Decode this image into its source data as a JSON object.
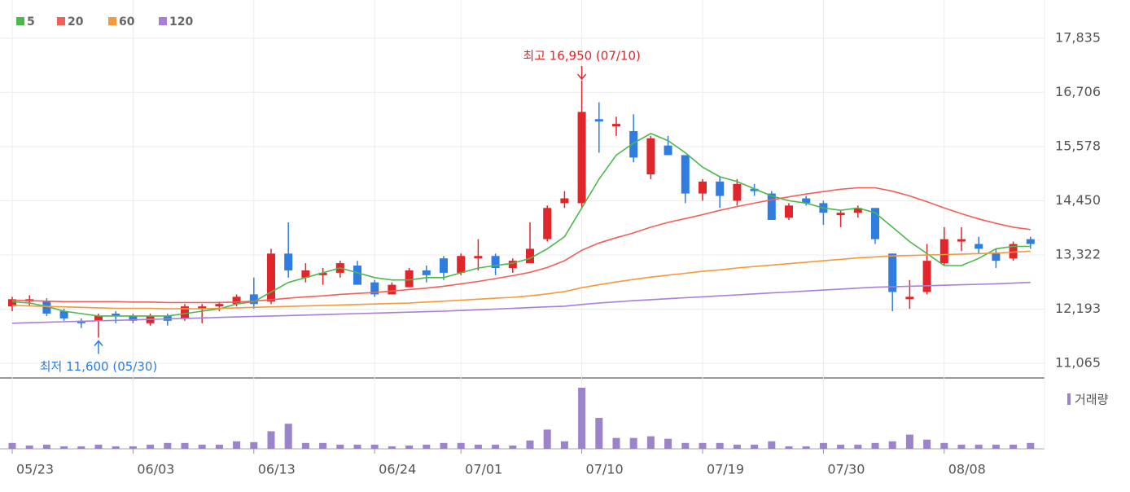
{
  "chart_data": {
    "type": "candlestick",
    "categories": [
      "05/23",
      null,
      null,
      null,
      null,
      null,
      null,
      "06/03",
      null,
      null,
      null,
      null,
      null,
      null,
      "06/13",
      null,
      null,
      null,
      null,
      null,
      null,
      "06/24",
      null,
      null,
      null,
      null,
      "07/01",
      null,
      null,
      null,
      null,
      null,
      null,
      "07/10",
      null,
      null,
      null,
      null,
      null,
      null,
      "07/19",
      null,
      null,
      null,
      null,
      null,
      null,
      "07/30",
      null,
      null,
      null,
      null,
      null,
      null,
      "08/08",
      null,
      null,
      null,
      null,
      null
    ],
    "open": [
      12250,
      12350,
      12350,
      12150,
      11950,
      11950,
      12100,
      12050,
      11900,
      12050,
      12000,
      12200,
      12250,
      12300,
      12500,
      12350,
      13350,
      12850,
      12900,
      12950,
      13100,
      12750,
      12500,
      12650,
      13000,
      13250,
      12950,
      13250,
      13300,
      13050,
      13150,
      13650,
      14400,
      14400,
      16150,
      16000,
      15900,
      15000,
      15600,
      15400,
      14600,
      14850,
      14450,
      14700,
      14600,
      14100,
      14500,
      14400,
      14150,
      14200,
      14300,
      13350,
      12400,
      12550,
      13150,
      13600,
      13550,
      13350,
      13250,
      13650
    ],
    "high": [
      12450,
      12480,
      12420,
      12200,
      12000,
      12100,
      12150,
      12100,
      12100,
      12100,
      12300,
      12300,
      12350,
      12500,
      12850,
      13450,
      14000,
      13150,
      13050,
      13200,
      13200,
      12800,
      12750,
      13050,
      13100,
      13300,
      13350,
      13650,
      13350,
      13250,
      14000,
      14350,
      14650,
      16950,
      16500,
      16200,
      16250,
      15800,
      15800,
      15400,
      14900,
      14950,
      14900,
      14800,
      14650,
      14400,
      14550,
      14450,
      14250,
      14350,
      14300,
      13350,
      12800,
      13550,
      13900,
      13900,
      13700,
      13450,
      13600,
      13700
    ],
    "low": [
      12150,
      12250,
      12050,
      11950,
      11800,
      11600,
      11900,
      11900,
      11850,
      11850,
      11950,
      11900,
      12150,
      12250,
      12200,
      12300,
      12850,
      12750,
      12700,
      12850,
      12700,
      12450,
      12500,
      12650,
      12750,
      12800,
      12900,
      13000,
      12900,
      12950,
      13150,
      13600,
      14300,
      14300,
      15450,
      15800,
      15250,
      14900,
      15400,
      14400,
      14450,
      14300,
      14350,
      14550,
      14050,
      14050,
      14350,
      13950,
      13900,
      14100,
      13550,
      12150,
      12200,
      12500,
      13100,
      13400,
      13350,
      13050,
      13200,
      13450
    ],
    "close": [
      12400,
      12400,
      12100,
      12000,
      11900,
      12050,
      12050,
      11950,
      12050,
      11950,
      12250,
      12250,
      12300,
      12450,
      12300,
      13350,
      13000,
      13000,
      12950,
      13150,
      12700,
      12500,
      12700,
      13000,
      12900,
      12950,
      13300,
      13300,
      13050,
      13200,
      13450,
      14300,
      14500,
      16300,
      16100,
      16050,
      15350,
      15750,
      15400,
      14600,
      14850,
      14550,
      14800,
      14650,
      14050,
      14350,
      14400,
      14200,
      14200,
      14300,
      13650,
      12550,
      12450,
      13200,
      13650,
      13650,
      13450,
      13200,
      13550,
      13550
    ],
    "up_color": "#e0262a",
    "down_color": "#2f7de1",
    "series": [
      {
        "name": "5",
        "color": "#4cb84c",
        "values": [
          12350,
          12320,
          12250,
          12150,
          12100,
          12050,
          12050,
          12050,
          12050,
          12050,
          12100,
          12150,
          12200,
          12300,
          12350,
          12550,
          12750,
          12850,
          12950,
          13050,
          12950,
          12850,
          12800,
          12800,
          12850,
          12850,
          12950,
          13050,
          13100,
          13150,
          13250,
          13450,
          13700,
          14300,
          14900,
          15400,
          15650,
          15850,
          15700,
          15450,
          15150,
          14950,
          14850,
          14700,
          14550,
          14450,
          14400,
          14300,
          14250,
          14300,
          14200,
          13900,
          13600,
          13350,
          13100,
          13100,
          13250,
          13450,
          13500,
          13500
        ]
      },
      {
        "name": "20",
        "color": "#f0605a",
        "values": [
          12380,
          12370,
          12360,
          12350,
          12350,
          12350,
          12350,
          12340,
          12340,
          12330,
          12330,
          12330,
          12330,
          12340,
          12360,
          12390,
          12420,
          12450,
          12470,
          12500,
          12520,
          12540,
          12570,
          12600,
          12630,
          12670,
          12720,
          12770,
          12830,
          12890,
          12960,
          13060,
          13200,
          13420,
          13570,
          13680,
          13780,
          13900,
          14000,
          14080,
          14160,
          14250,
          14330,
          14400,
          14470,
          14530,
          14590,
          14640,
          14690,
          14720,
          14720,
          14650,
          14550,
          14430,
          14300,
          14180,
          14070,
          13980,
          13900,
          13850
        ]
      },
      {
        "name": "60",
        "color": "#f39a3c",
        "values": [
          12270,
          12260,
          12250,
          12240,
          12230,
          12220,
          12210,
          12210,
          12210,
          12200,
          12200,
          12200,
          12210,
          12220,
          12230,
          12240,
          12250,
          12260,
          12270,
          12280,
          12290,
          12300,
          12310,
          12320,
          12340,
          12360,
          12380,
          12400,
          12420,
          12440,
          12470,
          12510,
          12560,
          12640,
          12700,
          12760,
          12810,
          12860,
          12900,
          12940,
          12980,
          13010,
          13050,
          13080,
          13110,
          13140,
          13170,
          13200,
          13230,
          13260,
          13280,
          13300,
          13310,
          13320,
          13330,
          13340,
          13350,
          13360,
          13380,
          13400
        ]
      },
      {
        "name": "120",
        "color": "#a77fd8",
        "values": [
          11900,
          11910,
          11920,
          11930,
          11940,
          11950,
          11960,
          11970,
          11980,
          11990,
          12000,
          12010,
          12020,
          12030,
          12040,
          12050,
          12060,
          12070,
          12080,
          12090,
          12100,
          12110,
          12120,
          12130,
          12140,
          12150,
          12165,
          12180,
          12195,
          12210,
          12225,
          12240,
          12255,
          12290,
          12320,
          12345,
          12370,
          12390,
          12410,
          12430,
          12450,
          12470,
          12490,
          12510,
          12530,
          12550,
          12570,
          12590,
          12610,
          12630,
          12650,
          12660,
          12670,
          12680,
          12690,
          12700,
          12710,
          12720,
          12735,
          12750
        ]
      }
    ],
    "volume": {
      "name": "거래량",
      "color": "#9b84c9",
      "values": [
        7,
        4,
        5,
        3,
        3,
        5,
        3,
        3,
        5,
        7,
        7,
        5,
        5,
        9,
        8,
        21,
        30,
        7,
        7,
        5,
        5,
        5,
        3,
        4,
        5,
        7,
        7,
        5,
        5,
        4,
        10,
        23,
        9,
        73,
        37,
        13,
        13,
        15,
        12,
        7,
        7,
        7,
        5,
        5,
        9,
        3,
        3,
        7,
        5,
        5,
        7,
        9,
        17,
        11,
        7,
        5,
        5,
        5,
        5,
        7
      ]
    },
    "ylim": [
      10760,
      18630
    ],
    "yticks": [
      {
        "value": 11065,
        "label": "11,065"
      },
      {
        "value": 12193,
        "label": "12,193"
      },
      {
        "value": 13322,
        "label": "13,322"
      },
      {
        "value": 14450,
        "label": "14,450"
      },
      {
        "value": 15578,
        "label": "15,578"
      },
      {
        "value": 16706,
        "label": "16,706"
      },
      {
        "value": 17835,
        "label": "17,835"
      }
    ],
    "grid": true,
    "annotations": [
      {
        "text": "최고 16,950 (07/10)",
        "index": 33,
        "color": "#e0262a",
        "position": "above"
      },
      {
        "text": "최저 11,600 (05/30)",
        "index": 5,
        "color": "#2f7de1",
        "position": "below"
      }
    ]
  }
}
